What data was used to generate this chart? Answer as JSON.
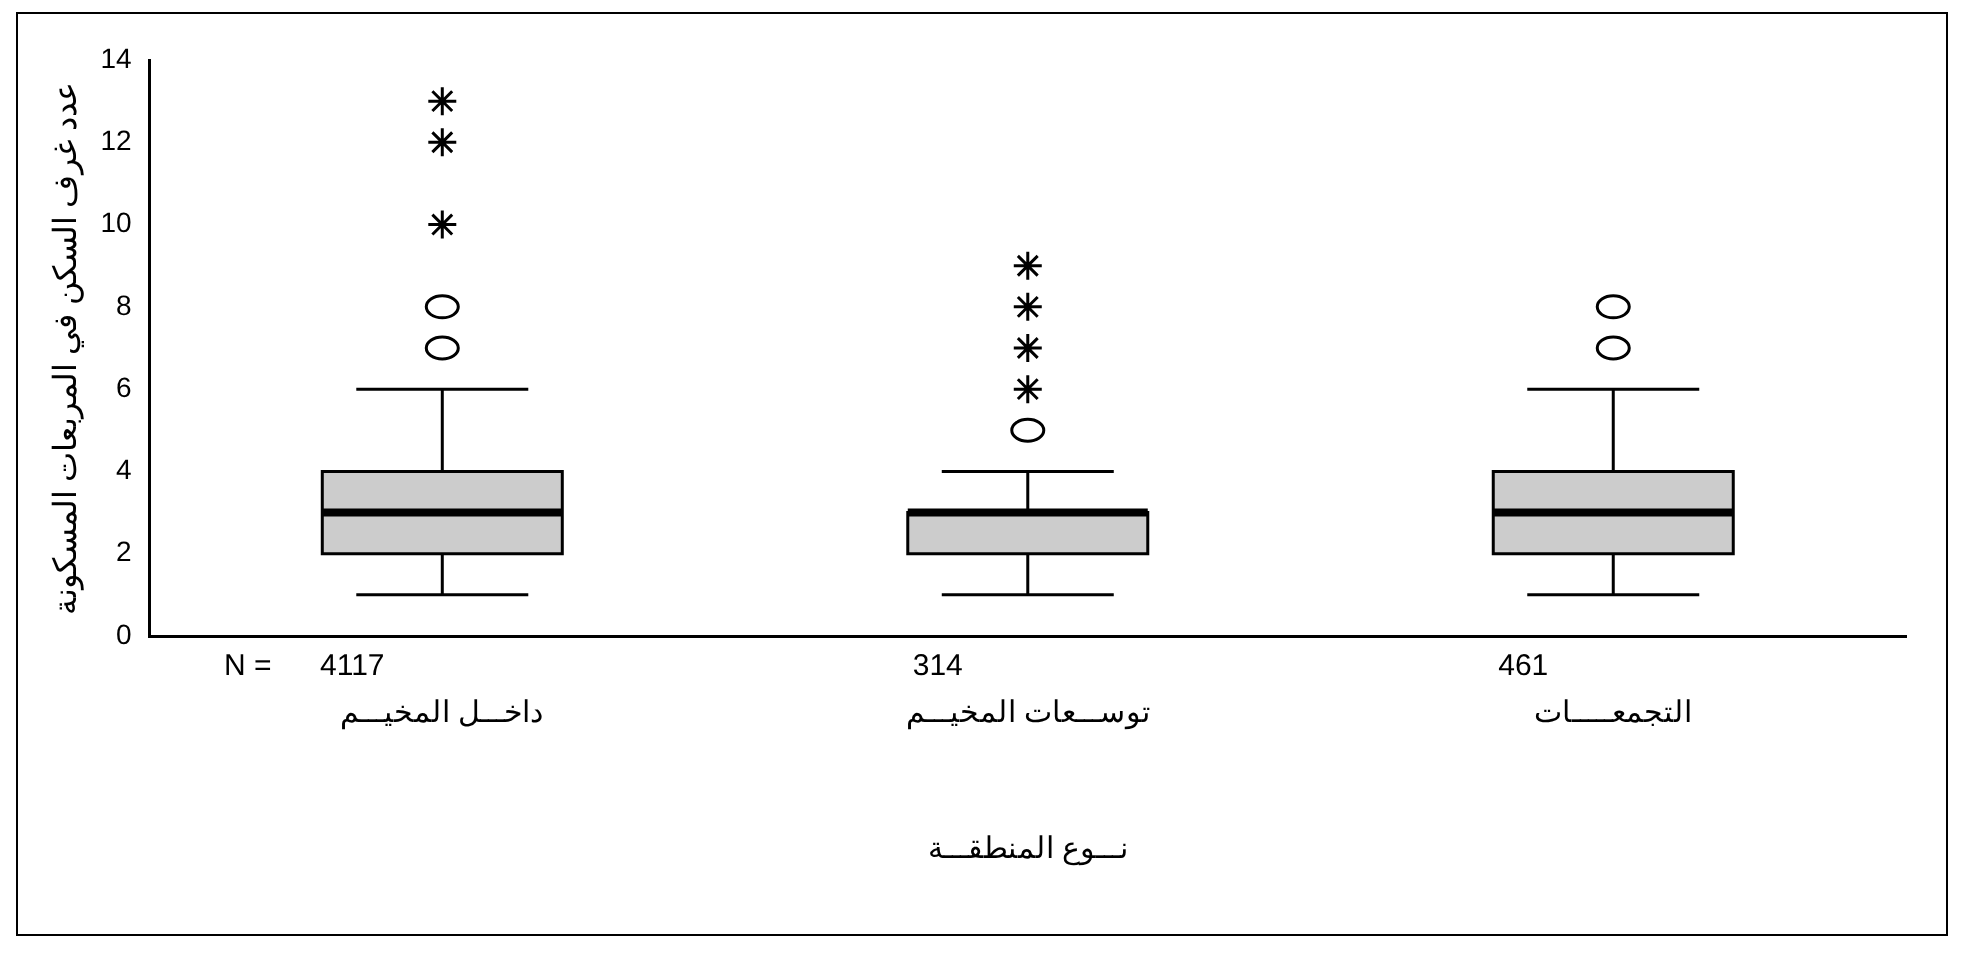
{
  "chart_data": {
    "type": "box",
    "ylabel": "عدد غرف السكن في المربعات المسكونة",
    "xlabel": "نـــوع المنطقـــة",
    "categories": [
      "داخـــل المخيـــم",
      "توســـعات المخيـــم",
      "التجمعـــــات"
    ],
    "color": "#cccccc",
    "boxes": [
      {
        "low": 1,
        "q1": 2,
        "median": 3,
        "q3": 4,
        "high": 6,
        "outliers": [
          7,
          8
        ]
      },
      {
        "low": 1,
        "q1": 2,
        "median": 3,
        "q3": 3,
        "high": 4,
        "outliers": [
          5
        ]
      },
      {
        "low": 1,
        "q1": 2,
        "median": 3,
        "q3": 4,
        "high": 6,
        "outliers": [
          7,
          8
        ]
      }
    ],
    "series": [
      {
        "type": "scatter",
        "marker": "cross",
        "color": "#000000",
        "x": [
          "داخـــل المخيـــم",
          "داخـــل المخيـــم",
          "داخـــل المخيـــم",
          "توســـعات المخيـــم",
          "توســـعات المخيـــم",
          "توســـعات المخيـــم",
          "توســـعات المخيـــم"
        ],
        "values": [
          10,
          12,
          13,
          6,
          7,
          8,
          9
        ]
      }
    ],
    "ylim": [
      0,
      14
    ],
    "yticks": [
      0,
      2,
      4,
      6,
      8,
      10,
      12,
      14
    ],
    "grid": false,
    "legend": false,
    "annotations": [
      "N =",
      "4117",
      "314",
      "461"
    ]
  }
}
